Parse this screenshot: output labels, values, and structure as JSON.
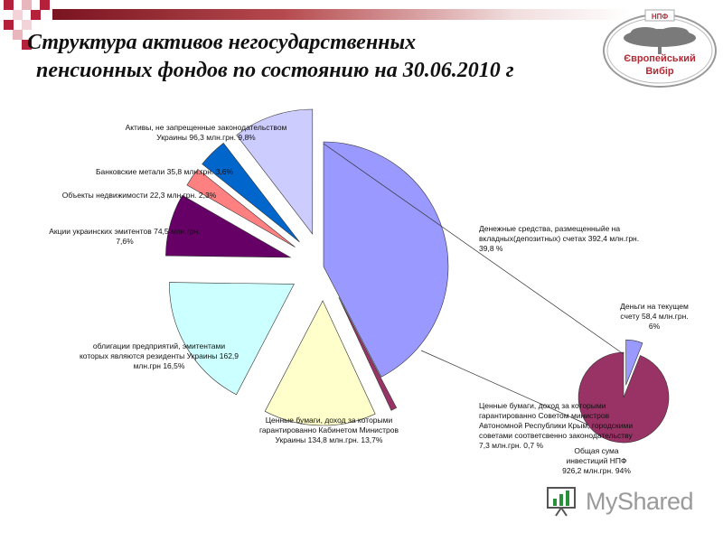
{
  "title": {
    "line1": "Структура активов негосударственных",
    "line2": "пенсионных фондов по состоянию на 30.06.2010 г"
  },
  "logo": {
    "top": "НПФ",
    "line1": "Європейський",
    "line2": "Вибір"
  },
  "watermark": {
    "text": "MyShared"
  },
  "colors": {
    "accent": "#7a1420",
    "logo_red": "#b12a35"
  },
  "chart_data": [
    {
      "type": "pie",
      "title": "",
      "slices": [
        {
          "label": [
            "Денежные средства, размещенныйе на",
            "вкладных(депозитных) счетах 392,4 млн.грн.",
            "39,8 %"
          ],
          "value": 39.8,
          "color": "#9999ff"
        },
        {
          "label": [
            "Ценные бумаги, доход за которыми",
            "гарантированно Советом министров",
            "Автономной Республики Крым, городскими",
            "советами соответсвенно законодательству",
            "7,3 млн.грн. 0,7 %"
          ],
          "value": 0.7,
          "color": "#993366"
        },
        {
          "label": [
            "Ценные бумаги, доход за которыми",
            "гарантированно Кабинетом Министров",
            "Украины 134,8 млн.грн. 13,7%"
          ],
          "value": 13.7,
          "color": "#ffffcc"
        },
        {
          "label": [
            "облигации предприятий, эмитентами",
            "которых являются резиденты Украины 162,9",
            "млн.грн 16,5%"
          ],
          "value": 16.5,
          "color": "#ccffff"
        },
        {
          "label": [
            "Акции украинских эмитентов 74,5 млн.грн.",
            "7,6%"
          ],
          "value": 7.6,
          "color": "#660066"
        },
        {
          "label": [
            "Объекты недвижимости 22,3 млн.грн. 2,3%"
          ],
          "value": 2.3,
          "color": "#ff8080"
        },
        {
          "label": [
            "Банковские метали 35,8 млн.грн. 3,6%"
          ],
          "value": 3.6,
          "color": "#0066cc"
        },
        {
          "label": [
            "Активы, не запрещенные законодательством",
            "Украины 96,3 млн.грн. 9,8%"
          ],
          "value": 9.8,
          "color": "#ccccff"
        }
      ]
    },
    {
      "type": "pie",
      "title": "",
      "slices": [
        {
          "label": [
            "Деньги на текущем",
            "счету 58,4 млн.грн.",
            "6%"
          ],
          "value": 6,
          "color": "#9999ff"
        },
        {
          "label": [
            "Общая сума",
            "инвестиций НПФ",
            "926,2 млн.грн. 94%"
          ],
          "value": 94,
          "color": "#993366"
        }
      ]
    }
  ]
}
